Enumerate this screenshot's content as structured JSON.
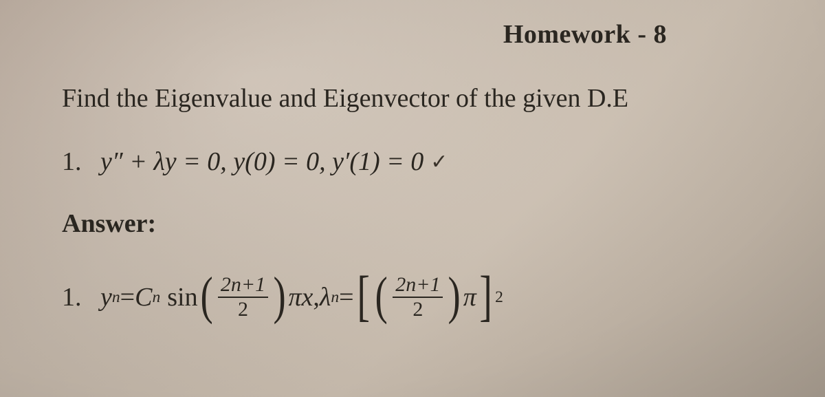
{
  "header": {
    "title": "Homework - 8"
  },
  "prompt": {
    "text": "Find the Eigenvalue and Eigenvector of the given D.E"
  },
  "problem": {
    "number": "1.",
    "equation_prefix": "y″ + λy = 0, ",
    "bc1": "y(0) = 0, ",
    "bc2": "y′(1) = 0",
    "check": "✓"
  },
  "answer_label": "Answer:",
  "answer": {
    "number": "1.",
    "y_label": "y",
    "n_sub": "n",
    "eq": " = ",
    "C_label": "C",
    "sin": "sin",
    "frac_top": "2n+1",
    "frac_bot": "2",
    "pi": "π",
    "x": "x",
    "comma": ",  ",
    "lambda": "λ",
    "outer_exp": "2"
  },
  "colors": {
    "text": "#2a2620",
    "bg_from": "#b8a89a",
    "bg_to": "#c0b3a4"
  }
}
